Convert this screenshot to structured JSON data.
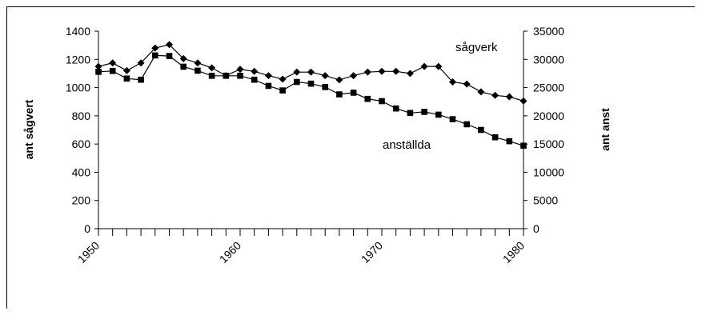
{
  "chart_data": {
    "type": "line",
    "title": "",
    "x": [
      1950,
      1951,
      1952,
      1953,
      1954,
      1955,
      1956,
      1957,
      1958,
      1959,
      1960,
      1961,
      1962,
      1963,
      1964,
      1965,
      1966,
      1967,
      1968,
      1969,
      1970,
      1971,
      1972,
      1973,
      1974,
      1975,
      1976,
      1977,
      1978,
      1979,
      1980
    ],
    "xticks": [
      "1950",
      "1960",
      "1970",
      "1980"
    ],
    "xlim": [
      1950,
      1980
    ],
    "ylabel_left": "ant sågvert",
    "ylabel_right": "ant anst",
    "ylim_left": [
      0,
      1400
    ],
    "ylim_right": [
      0,
      35000
    ],
    "yticks_left": [
      "0",
      "200",
      "400",
      "600",
      "800",
      "1000",
      "1200",
      "1400"
    ],
    "yticks_right": [
      "0",
      "5000",
      "10000",
      "15000",
      "20000",
      "25000",
      "30000",
      "35000"
    ],
    "grid": false,
    "series": [
      {
        "name": "sågverk",
        "axis": "left",
        "marker": "diamond",
        "values": [
          1150,
          1175,
          1120,
          1175,
          1280,
          1305,
          1205,
          1175,
          1140,
          1085,
          1130,
          1115,
          1085,
          1060,
          1110,
          1110,
          1085,
          1055,
          1085,
          1110,
          1115,
          1115,
          1100,
          1150,
          1150,
          1040,
          1025,
          970,
          945,
          935,
          905
        ]
      },
      {
        "name": "anställda",
        "axis": "right",
        "marker": "square",
        "values": [
          27800,
          27950,
          26600,
          26400,
          30700,
          30600,
          28700,
          28000,
          27100,
          27100,
          27100,
          26400,
          25300,
          24500,
          26000,
          25700,
          25100,
          23800,
          24100,
          23000,
          22600,
          21300,
          20500,
          20700,
          20200,
          19400,
          18500,
          17500,
          16200,
          15500,
          14700
        ]
      }
    ],
    "series_labels": {
      "sagverk": "sågverk",
      "anstallda": "anställda"
    }
  }
}
